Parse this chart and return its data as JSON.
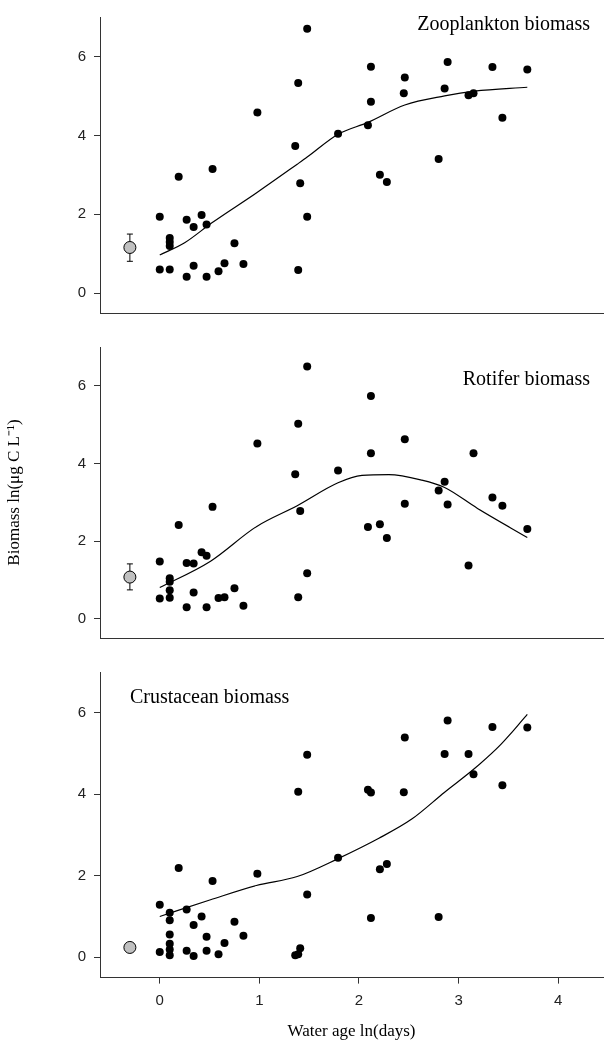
{
  "chart_data": [
    {
      "type": "scatter",
      "annotations": [
        "Zooplankton biomass"
      ],
      "xlim": [
        -0.6,
        4.45
      ],
      "ylim": [
        -0.5,
        7
      ],
      "xticks": [
        0,
        1,
        2,
        3,
        4
      ],
      "yticks": [
        0,
        2,
        4,
        6
      ],
      "tick_labels": "y",
      "grid": false,
      "marker": "circle",
      "series": [
        {
          "type": "scatter",
          "color": "#000000",
          "x": [
            0,
            0,
            0.1,
            0.1,
            0.1,
            0.1,
            0.19,
            0.27,
            0.27,
            0.34,
            0.34,
            0.42,
            0.47,
            0.47,
            0.53,
            0.59,
            0.65,
            0.75,
            0.84,
            0.98,
            1.36,
            1.39,
            1.39,
            1.41,
            1.48,
            1.48,
            1.79,
            2.09,
            2.12,
            2.12,
            2.21,
            2.28,
            2.45,
            2.46,
            2.8,
            2.86,
            2.89,
            3.1,
            3.15,
            3.34,
            3.44,
            3.69
          ],
          "values": [
            1.94,
            0.6,
            1.4,
            1.3,
            1.2,
            0.6,
            2.95,
            1.86,
            0.42,
            1.68,
            0.7,
            1.98,
            1.74,
            0.42,
            3.15,
            0.56,
            0.76,
            1.27,
            0.74,
            4.58,
            3.73,
            5.33,
            0.59,
            2.79,
            1.94,
            6.7,
            4.04,
            4.26,
            5.74,
            4.85,
            3.0,
            2.82,
            5.07,
            5.47,
            3.4,
            5.19,
            5.86,
            5.02,
            5.07,
            5.73,
            4.45,
            5.67
          ]
        },
        {
          "type": "scatter",
          "color": "#c0c0c0",
          "x": [
            -0.3
          ],
          "values": [
            1.16
          ],
          "errors": [
            [
              0.81,
              1.5
            ]
          ]
        },
        {
          "type": "line",
          "marker": "none",
          "color": "#000000",
          "x": [
            0,
            0.25,
            0.52,
            0.98,
            1.38,
            1.48,
            1.79,
            2.09,
            2.46,
            2.86,
            3.16,
            3.69
          ],
          "values": [
            0.97,
            1.28,
            1.78,
            2.56,
            3.27,
            3.45,
            4.03,
            4.33,
            4.77,
            5.0,
            5.12,
            5.22
          ]
        }
      ]
    },
    {
      "type": "scatter",
      "annotations": [
        "Rotifer biomass"
      ],
      "ylabel": "Biomass ln(μg C L⁻¹)",
      "xlim": [
        -0.6,
        4.45
      ],
      "ylim": [
        -0.5,
        7
      ],
      "xticks": [
        0,
        1,
        2,
        3,
        4
      ],
      "yticks": [
        0,
        2,
        4,
        6
      ],
      "tick_labels": "y",
      "grid": false,
      "marker": "circle",
      "series": [
        {
          "type": "scatter",
          "color": "#000000",
          "x": [
            0,
            0,
            0.1,
            0.1,
            0.1,
            0.1,
            0.19,
            0.27,
            0.27,
            0.34,
            0.34,
            0.42,
            0.47,
            0.47,
            0.53,
            0.59,
            0.65,
            0.75,
            0.84,
            0.98,
            1.36,
            1.39,
            1.39,
            1.41,
            1.48,
            1.48,
            1.79,
            2.09,
            2.12,
            2.12,
            2.21,
            2.28,
            2.46,
            2.46,
            2.8,
            2.86,
            2.89,
            3.1,
            3.15,
            3.34,
            3.44,
            3.69
          ],
          "values": [
            1.47,
            0.52,
            1.04,
            0.95,
            0.73,
            0.54,
            2.41,
            1.43,
            0.29,
            1.42,
            0.67,
            1.71,
            1.62,
            0.29,
            2.88,
            0.53,
            0.55,
            0.78,
            0.33,
            4.51,
            3.72,
            5.02,
            0.55,
            2.77,
            1.17,
            6.5,
            3.82,
            2.36,
            5.74,
            4.26,
            2.43,
            2.08,
            4.62,
            2.96,
            3.3,
            3.53,
            2.94,
            1.37,
            4.26,
            3.12,
            2.91,
            2.31
          ]
        },
        {
          "type": "scatter",
          "color": "#c0c0c0",
          "x": [
            -0.3
          ],
          "values": [
            1.07
          ],
          "errors": [
            [
              0.74,
              1.41
            ]
          ]
        },
        {
          "type": "line",
          "marker": "none",
          "color": "#000000",
          "x": [
            0,
            0.51,
            0.97,
            1.38,
            1.79,
            2.03,
            2.3,
            2.63,
            2.86,
            3.19,
            3.69
          ],
          "values": [
            0.8,
            1.48,
            2.37,
            2.91,
            3.5,
            3.69,
            3.71,
            3.57,
            3.38,
            2.84,
            2.09
          ]
        }
      ]
    },
    {
      "type": "scatter",
      "annotations": [
        "Crustacean biomass"
      ],
      "xlabel": "Water age ln(days)",
      "xlim": [
        -0.6,
        4.45
      ],
      "ylim": [
        -0.5,
        7
      ],
      "xticks": [
        0,
        1,
        2,
        3,
        4
      ],
      "yticks": [
        0,
        2,
        4,
        6
      ],
      "grid": false,
      "marker": "circle",
      "series": [
        {
          "type": "scatter",
          "color": "#000000",
          "x": [
            0,
            0,
            0.1,
            0.1,
            0.1,
            0.1,
            0.1,
            0.1,
            0.19,
            0.27,
            0.27,
            0.34,
            0.34,
            0.42,
            0.47,
            0.47,
            0.53,
            0.59,
            0.65,
            0.75,
            0.84,
            0.98,
            1.36,
            1.39,
            1.39,
            1.41,
            1.48,
            1.48,
            1.79,
            2.09,
            2.12,
            2.12,
            2.21,
            2.28,
            2.45,
            2.46,
            2.8,
            2.86,
            2.89,
            3.1,
            3.15,
            3.34,
            3.44,
            3.69
          ],
          "values": [
            1.29,
            0.13,
            1.09,
            0.91,
            0.56,
            0.33,
            0.19,
            0.05,
            2.19,
            1.17,
            0.16,
            0.79,
            0.03,
            1.0,
            0.5,
            0.16,
            1.87,
            0.07,
            0.35,
            0.87,
            0.53,
            2.05,
            0.05,
            4.06,
            0.07,
            0.22,
            1.54,
            4.97,
            2.44,
            4.11,
            4.04,
            0.96,
            2.16,
            2.29,
            4.05,
            5.39,
            0.99,
            4.99,
            5.81,
            4.99,
            4.49,
            5.65,
            4.22,
            5.64
          ]
        },
        {
          "type": "scatter",
          "color": "#c0c0c0",
          "x": [
            -0.3
          ],
          "values": [
            0.24
          ]
        },
        {
          "type": "line",
          "marker": "none",
          "color": "#000000",
          "x": [
            0,
            0.51,
            0.97,
            1.38,
            1.79,
            2.2,
            2.53,
            2.86,
            3.16,
            3.42,
            3.69
          ],
          "values": [
            1.0,
            1.41,
            1.76,
            1.98,
            2.42,
            2.92,
            3.39,
            4.05,
            4.63,
            5.21,
            5.96
          ]
        }
      ]
    }
  ]
}
